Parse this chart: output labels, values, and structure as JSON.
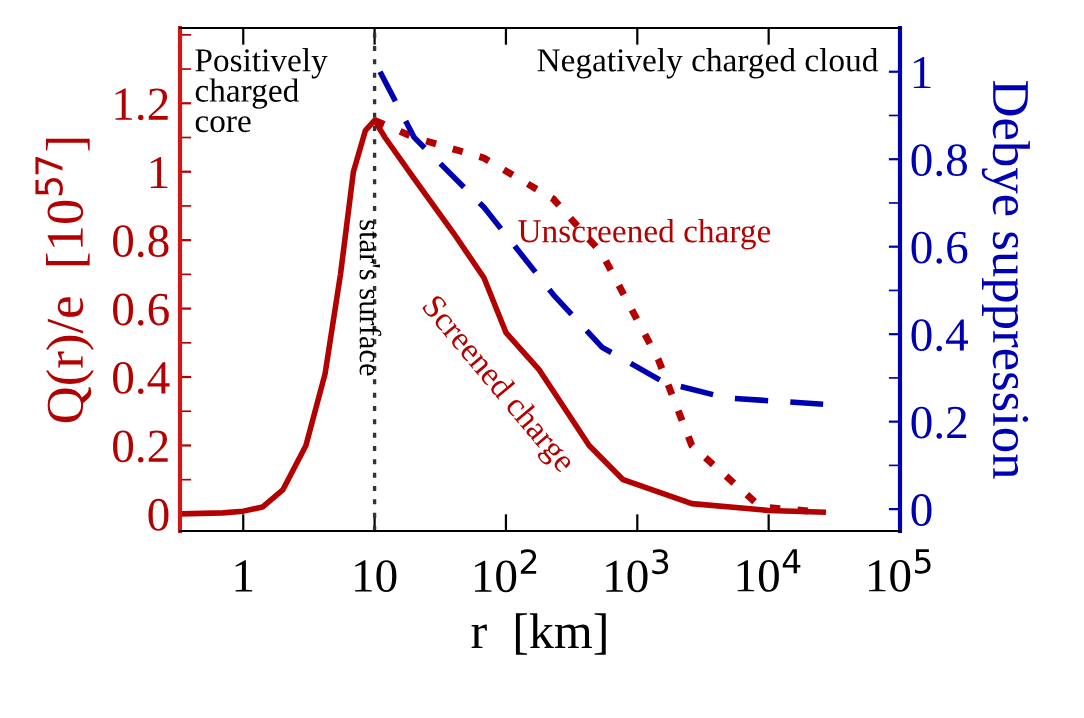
{
  "chart_data": {
    "type": "line",
    "xlabel": "r  [km]",
    "ylabel": "Q(r)/e  [10$^{57}$]",
    "y2label": "Debye suppression",
    "log": "x",
    "xlim": [
      0.33,
      100000
    ],
    "xticks": [
      1,
      10,
      {
        "value": 100,
        "label": "10$^{2}$"
      },
      {
        "value": 1000,
        "label": "10$^{3}$"
      },
      {
        "value": 10000,
        "label": "10$^{4}$"
      },
      {
        "value": 100000,
        "label": "10$^{5}$"
      }
    ],
    "ylim": [
      -0.05,
      1.42
    ],
    "yticks": [
      0,
      0.2,
      0.4,
      0.6,
      0.8,
      1,
      1.2
    ],
    "y2lim": [
      -0.05,
      1.1
    ],
    "y2ticks": [
      0,
      0.2,
      0.4,
      0.6,
      0.8,
      1
    ],
    "grid": false,
    "series": [
      {
        "name": "Screened charge",
        "color": "#b30000",
        "line_style": "solid",
        "x": [
          0.34,
          0.7,
          1,
          1.4,
          2,
          3,
          4.2,
          5.5,
          6.9,
          8.5,
          10,
          12,
          20,
          40,
          68,
          100,
          180,
          430,
          780,
          2600,
          10000,
          26000
        ],
        "values": [
          0.0,
          0.003,
          0.008,
          0.02,
          0.07,
          0.2,
          0.41,
          0.7,
          1.0,
          1.12,
          1.15,
          1.1,
          0.98,
          0.82,
          0.69,
          0.53,
          0.42,
          0.2,
          0.1,
          0.03,
          0.01,
          0.005
        ]
      },
      {
        "name": "Unscreened charge",
        "color": "#b30000",
        "line_style": "dotted",
        "x": [
          10,
          20,
          68,
          230,
          540,
          1450,
          2600,
          8700,
          26000
        ],
        "values": [
          1.15,
          1.1,
          1.04,
          0.92,
          0.76,
          0.45,
          0.2,
          0.02,
          0.005
        ]
      },
      {
        "color": "#0000b3",
        "line_style": "dashed",
        "axis": "y2",
        "x": [
          11,
          20,
          68,
          230,
          540,
          1600,
          4800,
          26000
        ],
        "values": [
          1.0,
          0.85,
          0.69,
          0.49,
          0.37,
          0.29,
          0.254,
          0.24
        ]
      }
    ],
    "ref_lines": [
      {
        "axis": "x",
        "value": 10,
        "label": "star's surface",
        "color": "#333333",
        "line_style": "dotted"
      }
    ],
    "annotations": [
      "Positively\ncharged\ncore",
      "Negatively charged cloud"
    ]
  }
}
